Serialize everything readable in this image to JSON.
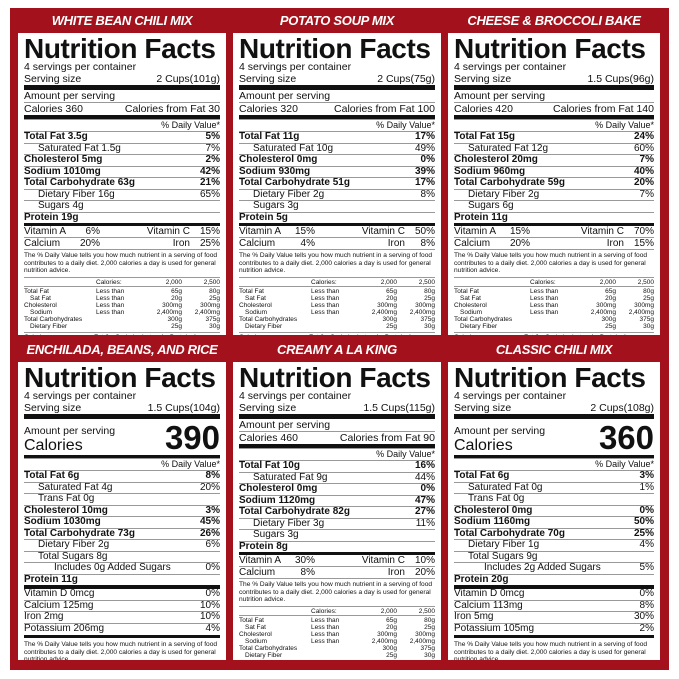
{
  "colors": {
    "background": "#a3121c",
    "panel": "#ffffff",
    "text": "#111111"
  },
  "common": {
    "heading": "Nutrition Facts",
    "servings": "4 servings per container",
    "serving_label": "Serving size",
    "amount_label": "Amount per serving",
    "calories_label": "Calories",
    "dv_header": "% Daily Value*",
    "footnote": "The % Daily Value tells you how much nutrient in a serving of food contributes to a daily diet. 2,000 calories a day is used for general nutrition advice.",
    "dv_table": {
      "header": [
        "",
        "Calories:",
        "2,000",
        "2,500"
      ],
      "rows": [
        [
          "Total Fat",
          "Less than",
          "65g",
          "80g"
        ],
        [
          "Sat Fat",
          "Less than",
          "20g",
          "25g"
        ],
        [
          "Cholesterol",
          "Less than",
          "300mg",
          "300mg"
        ],
        [
          "Sodium",
          "Less than",
          "2,400mg",
          "2,400mg"
        ],
        [
          "Total Carbohydrates",
          "",
          "300g",
          "375g"
        ],
        [
          "Dietary Fiber",
          "",
          "25g",
          "30g"
        ]
      ]
    },
    "per_gram_label": "Calories pe gram:",
    "per_gram_values": "Fat 9 • Carbohydrates 4 • Protein 4",
    "per_gram_full": "Calories pe gram: Fat 9 • Carbohydrates 4 • Protein 4"
  },
  "panels": [
    {
      "title": "WHITE BEAN CHILI MIX",
      "format": "classic",
      "serving_size": "2 Cups(101g)",
      "calories": "Calories 360",
      "calories_from_fat": "Calories from Fat 30",
      "nutrients": [
        {
          "label": "Total Fat 3.5g",
          "dv": "5%",
          "bold": true,
          "indent": 0
        },
        {
          "label": "Saturated Fat 1.5g",
          "dv": "7%",
          "bold": false,
          "indent": 1
        },
        {
          "label": "Cholesterol 5mg",
          "dv": "2%",
          "bold": true,
          "indent": 0
        },
        {
          "label": "Sodium 1010mg",
          "dv": "42%",
          "bold": true,
          "indent": 0
        },
        {
          "label": "Total Carbohydrate 63g",
          "dv": "21%",
          "bold": true,
          "indent": 0
        },
        {
          "label": "Dietary Fiber 16g",
          "dv": "65%",
          "bold": false,
          "indent": 1
        },
        {
          "label": "Sugars 4g",
          "dv": "",
          "bold": false,
          "indent": 1
        },
        {
          "label": "Protein 19g",
          "dv": "",
          "bold": true,
          "indent": 0
        }
      ],
      "vitamins": [
        [
          {
            "name": "Vitamin A",
            "dv": "6%"
          },
          {
            "name": "Vitamin C",
            "dv": "15%"
          }
        ],
        [
          {
            "name": "Calcium",
            "dv": "20%"
          },
          {
            "name": "Iron",
            "dv": "25%"
          }
        ]
      ]
    },
    {
      "title": "POTATO SOUP MIX",
      "format": "classic",
      "serving_size": "2 Cups(75g)",
      "calories": "Calories 320",
      "calories_from_fat": "Calories from Fat 100",
      "nutrients": [
        {
          "label": "Total Fat 11g",
          "dv": "17%",
          "bold": true,
          "indent": 0
        },
        {
          "label": "Saturated Fat 10g",
          "dv": "49%",
          "bold": false,
          "indent": 1
        },
        {
          "label": "Cholesterol 0mg",
          "dv": "0%",
          "bold": true,
          "indent": 0
        },
        {
          "label": "Sodium 930mg",
          "dv": "39%",
          "bold": true,
          "indent": 0
        },
        {
          "label": "Total Carbohydrate 51g",
          "dv": "17%",
          "bold": true,
          "indent": 0
        },
        {
          "label": "Dietary Fiber 2g",
          "dv": "8%",
          "bold": false,
          "indent": 1
        },
        {
          "label": "Sugars 3g",
          "dv": "",
          "bold": false,
          "indent": 1
        },
        {
          "label": "Protein 5g",
          "dv": "",
          "bold": true,
          "indent": 0
        }
      ],
      "vitamins": [
        [
          {
            "name": "Vitamin A",
            "dv": "15%"
          },
          {
            "name": "Vitamin C",
            "dv": "50%"
          }
        ],
        [
          {
            "name": "Calcium",
            "dv": "4%"
          },
          {
            "name": "Iron",
            "dv": "8%"
          }
        ]
      ]
    },
    {
      "title": "CHEESE & BROCCOLI BAKE",
      "format": "classic",
      "serving_size": "1.5 Cups(96g)",
      "calories": "Calories 420",
      "calories_from_fat": "Calories from Fat 140",
      "nutrients": [
        {
          "label": "Total Fat 15g",
          "dv": "24%",
          "bold": true,
          "indent": 0
        },
        {
          "label": "Saturated Fat 12g",
          "dv": "60%",
          "bold": false,
          "indent": 1
        },
        {
          "label": "Cholesterol 20mg",
          "dv": "7%",
          "bold": true,
          "indent": 0
        },
        {
          "label": "Sodium 960mg",
          "dv": "40%",
          "bold": true,
          "indent": 0
        },
        {
          "label": "Total Carbohydrate 59g",
          "dv": "20%",
          "bold": true,
          "indent": 0
        },
        {
          "label": "Dietary Fiber 2g",
          "dv": "7%",
          "bold": false,
          "indent": 1
        },
        {
          "label": "Sugars 6g",
          "dv": "",
          "bold": false,
          "indent": 1
        },
        {
          "label": "Protein 11g",
          "dv": "",
          "bold": true,
          "indent": 0
        }
      ],
      "vitamins": [
        [
          {
            "name": "Vitamin A",
            "dv": "15%"
          },
          {
            "name": "Vitamin C",
            "dv": "70%"
          }
        ],
        [
          {
            "name": "Calcium",
            "dv": "20%"
          },
          {
            "name": "Iron",
            "dv": "15%"
          }
        ]
      ]
    },
    {
      "title": "ENCHILADA, BEANS, AND RICE",
      "format": "new",
      "serving_size": "1.5 Cups(104g)",
      "calories_value": "390",
      "nutrients": [
        {
          "label": "Total Fat 6g",
          "dv": "8%",
          "bold": true,
          "indent": 0
        },
        {
          "label": "Saturated   Fat 4g",
          "dv": "20%",
          "bold": false,
          "indent": 1
        },
        {
          "label": "Trans Fat 0g",
          "dv": "",
          "bold": false,
          "indent": 1
        },
        {
          "label": "Cholesterol 10mg",
          "dv": "3%",
          "bold": true,
          "indent": 0
        },
        {
          "label": "Sodium 1030mg",
          "dv": "45%",
          "bold": true,
          "indent": 0
        },
        {
          "label": "Total Carbohydrate 73g",
          "dv": "26%",
          "bold": true,
          "indent": 0
        },
        {
          "label": "Dietary Fiber 2g",
          "dv": "6%",
          "bold": false,
          "indent": 1
        },
        {
          "label": "Total Sugars 8g",
          "dv": "",
          "bold": false,
          "indent": 1
        },
        {
          "label": "Includes 0g Added Sugars",
          "dv": "0%",
          "bold": false,
          "indent": 2
        },
        {
          "label": "Protein 11g",
          "dv": "",
          "bold": true,
          "indent": 0
        }
      ],
      "minerals": [
        {
          "label": "Vitamin D 0mcg",
          "dv": "0%"
        },
        {
          "label": "Calcium 125mg",
          "dv": "10%"
        },
        {
          "label": "Iron 2mg",
          "dv": "10%"
        },
        {
          "label": "Potassium 206mg",
          "dv": "4%"
        }
      ]
    },
    {
      "title": "CREAMY A LA KING",
      "format": "classic",
      "serving_size": "1.5 Cups(115g)",
      "calories": "Calories 460",
      "calories_from_fat": "Calories from Fat 90",
      "nutrients": [
        {
          "label": "Total Fat 10g",
          "dv": "16%",
          "bold": true,
          "indent": 0
        },
        {
          "label": "Saturated Fat 9g",
          "dv": "44%",
          "bold": false,
          "indent": 1
        },
        {
          "label": "Cholesterol 0mg",
          "dv": "0%",
          "bold": true,
          "indent": 0
        },
        {
          "label": "Sodium 1120mg",
          "dv": "47%",
          "bold": true,
          "indent": 0
        },
        {
          "label": "Total Carbohydrate 82g",
          "dv": "27%",
          "bold": true,
          "indent": 0
        },
        {
          "label": "Dietary Fiber 3g",
          "dv": "11%",
          "bold": false,
          "indent": 1
        },
        {
          "label": "Sugars 3g",
          "dv": "",
          "bold": false,
          "indent": 1
        },
        {
          "label": "Protein 8g",
          "dv": "",
          "bold": true,
          "indent": 0
        }
      ],
      "vitamins": [
        [
          {
            "name": "Vitamin A",
            "dv": "30%"
          },
          {
            "name": "Vitamin C",
            "dv": "10%"
          }
        ],
        [
          {
            "name": "Calcium",
            "dv": "8%"
          },
          {
            "name": "Iron",
            "dv": "20%"
          }
        ]
      ]
    },
    {
      "title": "CLASSIC CHILI MIX",
      "format": "new",
      "serving_size": "2 Cups(108g)",
      "calories_value": "360",
      "nutrients": [
        {
          "label": "Total Fat 6g",
          "dv": "3%",
          "bold": true,
          "indent": 0
        },
        {
          "label": "Saturated Fat 0g",
          "dv": "1%",
          "bold": false,
          "indent": 1
        },
        {
          "label": "Trans Fat 0g",
          "dv": "",
          "bold": false,
          "indent": 1
        },
        {
          "label": "Cholesterol 0mg",
          "dv": "0%",
          "bold": true,
          "indent": 0
        },
        {
          "label": "Sodium 1160mg",
          "dv": "50%",
          "bold": true,
          "indent": 0
        },
        {
          "label": "Total Carbohydrate 70g",
          "dv": "25%",
          "bold": true,
          "indent": 0
        },
        {
          "label": "Dietary Fiber 1g",
          "dv": "4%",
          "bold": false,
          "indent": 1
        },
        {
          "label": "Total Sugars 9g",
          "dv": "",
          "bold": false,
          "indent": 1
        },
        {
          "label": "Includes 2g Added Sugars",
          "dv": "5%",
          "bold": false,
          "indent": 2
        },
        {
          "label": "Protein 20g",
          "dv": "",
          "bold": true,
          "indent": 0
        }
      ],
      "minerals": [
        {
          "label": "Vitamin D 0mcg",
          "dv": "0%"
        },
        {
          "label": "Calcium 113mg",
          "dv": "8%"
        },
        {
          "label": "Iron 5mg",
          "dv": "30%"
        },
        {
          "label": "Potassium 105mg",
          "dv": "2%"
        }
      ]
    }
  ]
}
